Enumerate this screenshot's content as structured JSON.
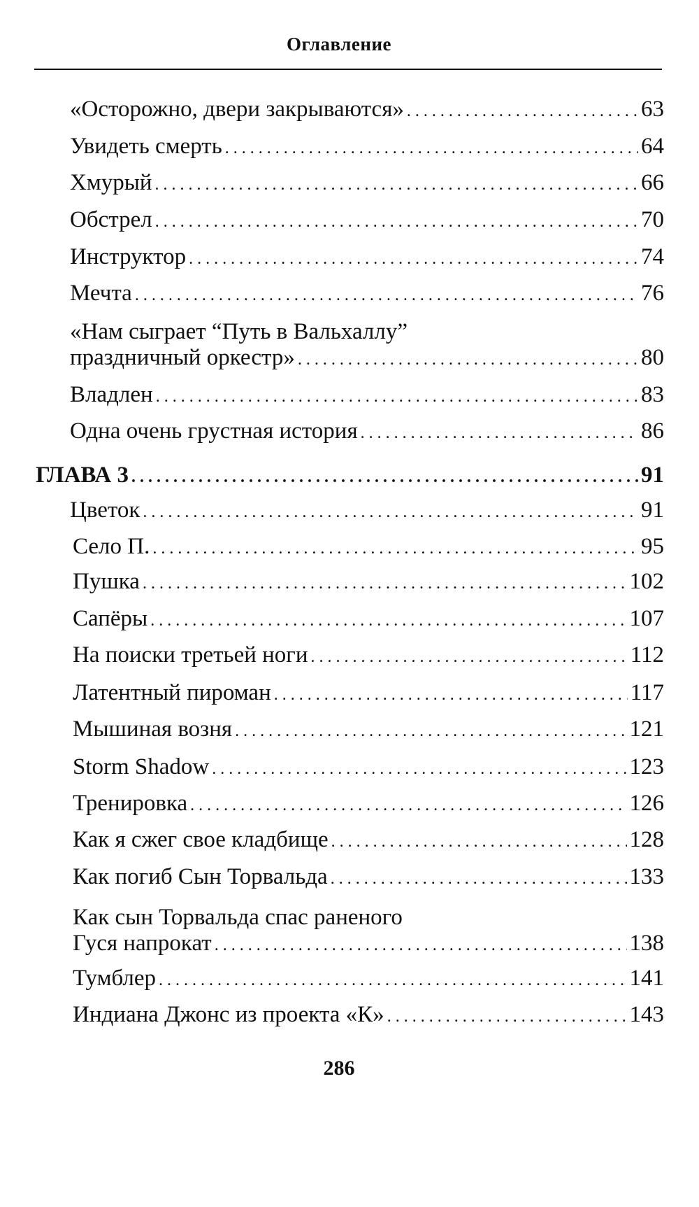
{
  "header": {
    "title": "Оглавление"
  },
  "entries": [
    {
      "title": "«Осторожно, двери закрываются»",
      "page": "63"
    },
    {
      "title": "Увидеть смерть",
      "page": "64"
    },
    {
      "title": "Хмурый",
      "page": "66"
    },
    {
      "title": "Обстрел",
      "page": "70"
    },
    {
      "title": "Инструктор",
      "page": "74"
    },
    {
      "title": "Мечта",
      "page": "76"
    },
    {
      "title_line1": "«Нам сыграет “Путь в Вальхаллу”",
      "title": "праздничный оркестр»",
      "page": "80"
    },
    {
      "title": "Владлен",
      "page": "83"
    },
    {
      "title": "Одна очень грустная история",
      "page": "86"
    },
    {
      "title": "ГЛАВА 3",
      "page": "91",
      "chapter": true
    },
    {
      "title": "Цветок",
      "page": "91"
    },
    {
      "title": "Село П.",
      "page": "95"
    },
    {
      "title": "Пушка",
      "page": "102"
    },
    {
      "title": "Сапёры",
      "page": "107"
    },
    {
      "title": "На поиски третьей ноги",
      "page": "112"
    },
    {
      "title": "Латентный пироман",
      "page": "117"
    },
    {
      "title": "Мышиная возня",
      "page": "121"
    },
    {
      "title": "Storm Shadow",
      "page": "123"
    },
    {
      "title": "Тренировка",
      "page": "126"
    },
    {
      "title": "Как я сжег свое кладбище",
      "page": "128"
    },
    {
      "title": "Как погиб Сын Торвальда",
      "page": "133"
    },
    {
      "title_line1": "Как сын Торвальда спас раненого",
      "title": "Гуся напрокат",
      "page": "138"
    },
    {
      "title": "Тумблер",
      "page": "141"
    },
    {
      "title": "Индиана Джонс из проекта «К»",
      "page": "143"
    }
  ],
  "footer": {
    "page_number": "286"
  }
}
